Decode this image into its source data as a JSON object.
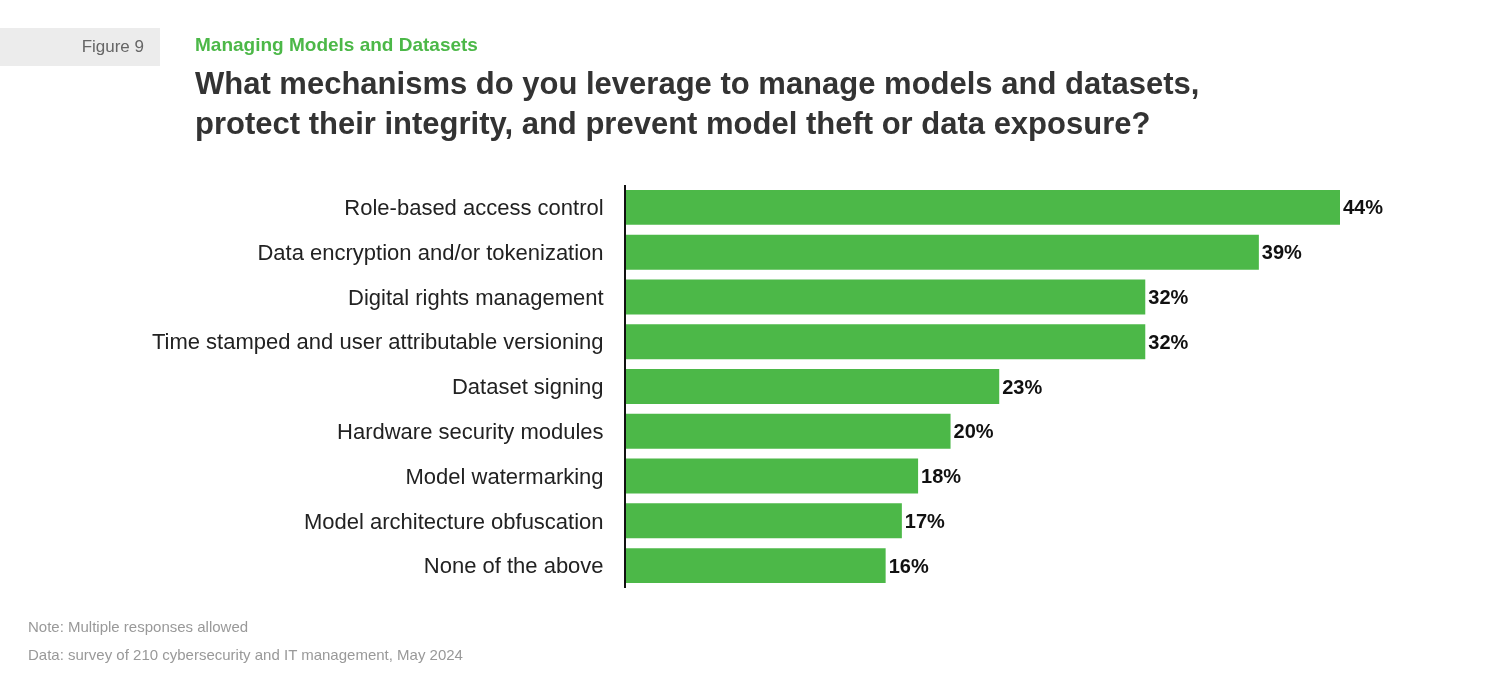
{
  "chart_data": {
    "type": "bar",
    "orientation": "horizontal",
    "title": "What mechanisms do you leverage to manage models and datasets,\nprotect their integrity, and prevent model theft or data exposure?",
    "subtitle": "Managing Models and Datasets",
    "annotations": [
      "Figure 9",
      "Note: Multiple responses allowed",
      "Data: survey of 210 cybersecurity and IT management, May 2024"
    ],
    "categories": [
      "Role-based access control",
      "Data encryption and/or tokenization",
      "Digital rights management",
      "Time stamped and user attributable versioning",
      "Dataset signing",
      "Hardware security modules",
      "Model watermarking",
      "Model architecture obfuscation",
      "None of the above"
    ],
    "values": [
      44,
      39,
      32,
      32,
      23,
      20,
      18,
      17,
      16
    ],
    "value_labels": [
      "44%",
      "39%",
      "32%",
      "32%",
      "23%",
      "20%",
      "18%",
      "17%",
      "16%"
    ],
    "color": "#4cb848"
  }
}
